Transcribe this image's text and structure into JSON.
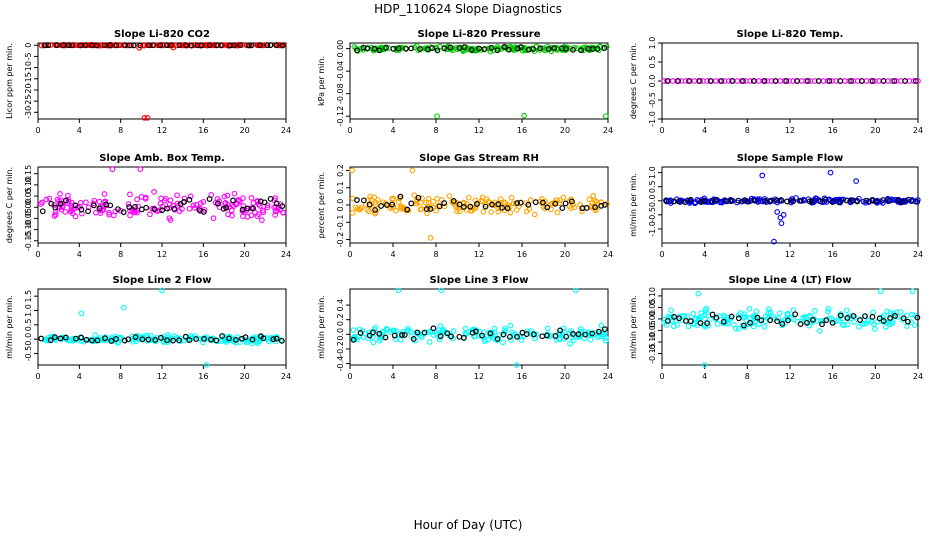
{
  "title": "HDP_110624  Slope Diagnostics",
  "xlabel": "Hour of Day (UTC)",
  "chart_data": [
    {
      "type": "scatter",
      "title": "Slope Li-820 CO2",
      "ylabel": "Licor ppm per min.",
      "xlim": [
        0,
        24
      ],
      "ylim": [
        -33,
        1
      ],
      "yticks": [
        0,
        -5,
        -10,
        -15,
        -20,
        -25,
        -30
      ],
      "xticks": [
        0,
        4,
        8,
        12,
        16,
        20,
        24
      ],
      "color": "#ff0000",
      "spread": 0.25,
      "outliers": [
        {
          "x": 10.3,
          "y": -32.5
        },
        {
          "x": 10.6,
          "y": -32.5
        },
        {
          "x": 9.8,
          "y": -1.2
        },
        {
          "x": 13.1,
          "y": -1
        }
      ]
    },
    {
      "type": "scatter",
      "title": "Slope Li-820 Pressure",
      "ylabel": "kPa per min.",
      "xlim": [
        0,
        24
      ],
      "ylim": [
        -0.125,
        0.01
      ],
      "yticks": [
        0,
        -0.04,
        -0.08,
        -0.12
      ],
      "ytickLabels": [
        "0.00",
        "-0.04",
        "-0.08",
        "-0.12"
      ],
      "xticks": [
        0,
        4,
        8,
        12,
        16,
        20,
        24
      ],
      "color": "#00cc00",
      "spread": 0.006,
      "outliers": [
        {
          "x": 8.1,
          "y": -0.12
        },
        {
          "x": 16.2,
          "y": -0.119
        },
        {
          "x": 23.8,
          "y": -0.12
        }
      ]
    },
    {
      "type": "scatter",
      "title": "Slope Li-820 Temp.",
      "ylabel": "degrees C per min.",
      "xlim": [
        0,
        24
      ],
      "ylim": [
        -1,
        1
      ],
      "yticks": [
        1,
        0.5,
        0,
        -0.5,
        -1
      ],
      "ytickLabels": [
        "1.0",
        "0.5",
        "0.0",
        "-0.5",
        "-1.0"
      ],
      "xticks": [
        0,
        4,
        8,
        12,
        16,
        20,
        24
      ],
      "color": "#ff00ff",
      "spread": 0,
      "outliers": []
    },
    {
      "type": "scatter",
      "title": "Slope Amb. Box Temp.",
      "ylabel": "degrees C per min.",
      "xlim": [
        0,
        24
      ],
      "ylim": [
        -0.16,
        0.18
      ],
      "yticks": [
        0.15,
        0.1,
        0.05,
        0,
        -0.05,
        -0.1,
        -0.15
      ],
      "ytickLabels": [
        "0.15",
        "0.10",
        "0.05",
        "0.00",
        "-0.05",
        "-0.10",
        "-0.15"
      ],
      "xticks": [
        0,
        4,
        8,
        12,
        16,
        20,
        24
      ],
      "color": "#ff00ff",
      "spread": 0.08,
      "outliers": [
        {
          "x": 7.2,
          "y": 0.17
        },
        {
          "x": 9.9,
          "y": 0.17
        }
      ]
    },
    {
      "type": "scatter",
      "title": "Slope Gas Stream RH",
      "ylabel": "percent per min.",
      "xlim": [
        0,
        24
      ],
      "ylim": [
        -0.22,
        0.22
      ],
      "yticks": [
        0.2,
        0.1,
        0,
        -0.1,
        -0.2
      ],
      "ytickLabels": [
        "0.2",
        "0.1",
        "0.0",
        "-0.1",
        "-0.2"
      ],
      "xticks": [
        0,
        4,
        8,
        12,
        16,
        20,
        24
      ],
      "color": "#ffa500",
      "spread": 0.08,
      "outliers": [
        {
          "x": 0.2,
          "y": 0.2
        },
        {
          "x": 5.8,
          "y": 0.2
        },
        {
          "x": 7.5,
          "y": -0.19
        }
      ]
    },
    {
      "type": "scatter",
      "title": "Slope Sample Flow",
      "ylabel": "ml/min per min.",
      "xlim": [
        0,
        24
      ],
      "ylim": [
        -1.5,
        1.2
      ],
      "yticks": [
        1,
        0.5,
        0,
        -0.5,
        -1
      ],
      "ytickLabels": [
        "1.0",
        "0.5",
        "0.0",
        "-0.5",
        "-1.0"
      ],
      "xticks": [
        0,
        4,
        8,
        12,
        16,
        20,
        24
      ],
      "color": "#0000ff",
      "spread": 0.12,
      "outliers": [
        {
          "x": 10.5,
          "y": -1.45
        },
        {
          "x": 9.4,
          "y": 0.9
        },
        {
          "x": 15.8,
          "y": 1
        },
        {
          "x": 11.1,
          "y": -0.6
        },
        {
          "x": 11.2,
          "y": -0.8
        },
        {
          "x": 11.4,
          "y": -0.5
        },
        {
          "x": 10.8,
          "y": -0.4
        },
        {
          "x": 18.2,
          "y": 0.7
        }
      ]
    },
    {
      "type": "scatter",
      "title": "Slope Line 2 Flow",
      "ylabel": "ml/min per min.",
      "xlim": [
        0,
        24
      ],
      "ylim": [
        -0.9,
        1.75
      ],
      "yticks": [
        1.5,
        1,
        0.5,
        0,
        -0.5
      ],
      "ytickLabels": [
        "1.5",
        "1.0",
        "0.5",
        "0.0",
        "-0.5"
      ],
      "xticks": [
        0,
        4,
        8,
        12,
        16,
        20,
        24
      ],
      "color": "#00ffff",
      "spread": 0.2,
      "outliers": [
        {
          "x": 12,
          "y": 1.7
        },
        {
          "x": 16.3,
          "y": -0.9
        },
        {
          "x": 8.3,
          "y": 1.1
        },
        {
          "x": 4.2,
          "y": 0.9
        }
      ]
    },
    {
      "type": "scatter",
      "title": "Slope Line 3 Flow",
      "ylabel": "ml/min per min.",
      "xlim": [
        0,
        24
      ],
      "ylim": [
        -0.42,
        0.62
      ],
      "yticks": [
        0.4,
        0.2,
        0,
        -0.2,
        -0.4
      ],
      "ytickLabels": [
        "0.4",
        "0.2",
        "0.0",
        "-0.2",
        "-0.4"
      ],
      "xticks": [
        0,
        4,
        8,
        12,
        16,
        20,
        24
      ],
      "color": "#00ffff",
      "spread": 0.15,
      "outliers": [
        {
          "x": 4.5,
          "y": 0.6
        },
        {
          "x": 8.5,
          "y": 0.6
        },
        {
          "x": 15.5,
          "y": -0.42
        },
        {
          "x": 21,
          "y": 0.6
        }
      ]
    },
    {
      "type": "scatter",
      "title": "Slope Line 4 (LT) Flow",
      "ylabel": "ml/min per min.",
      "xlim": [
        0,
        24
      ],
      "ylim": [
        -0.2,
        0.13
      ],
      "yticks": [
        0.1,
        0.05,
        0,
        -0.05,
        -0.1,
        -0.15
      ],
      "ytickLabels": [
        "0.10",
        "0.05",
        "0.00",
        "-0.05",
        "-0.10",
        "-0.15"
      ],
      "xticks": [
        0,
        4,
        8,
        12,
        16,
        20,
        24
      ],
      "color": "#00ffff",
      "spread": 0.06,
      "outliers": [
        {
          "x": 4,
          "y": -0.2
        },
        {
          "x": 3.4,
          "y": 0.11
        },
        {
          "x": 20.5,
          "y": 0.12
        },
        {
          "x": 23.5,
          "y": 0.12
        }
      ]
    }
  ]
}
